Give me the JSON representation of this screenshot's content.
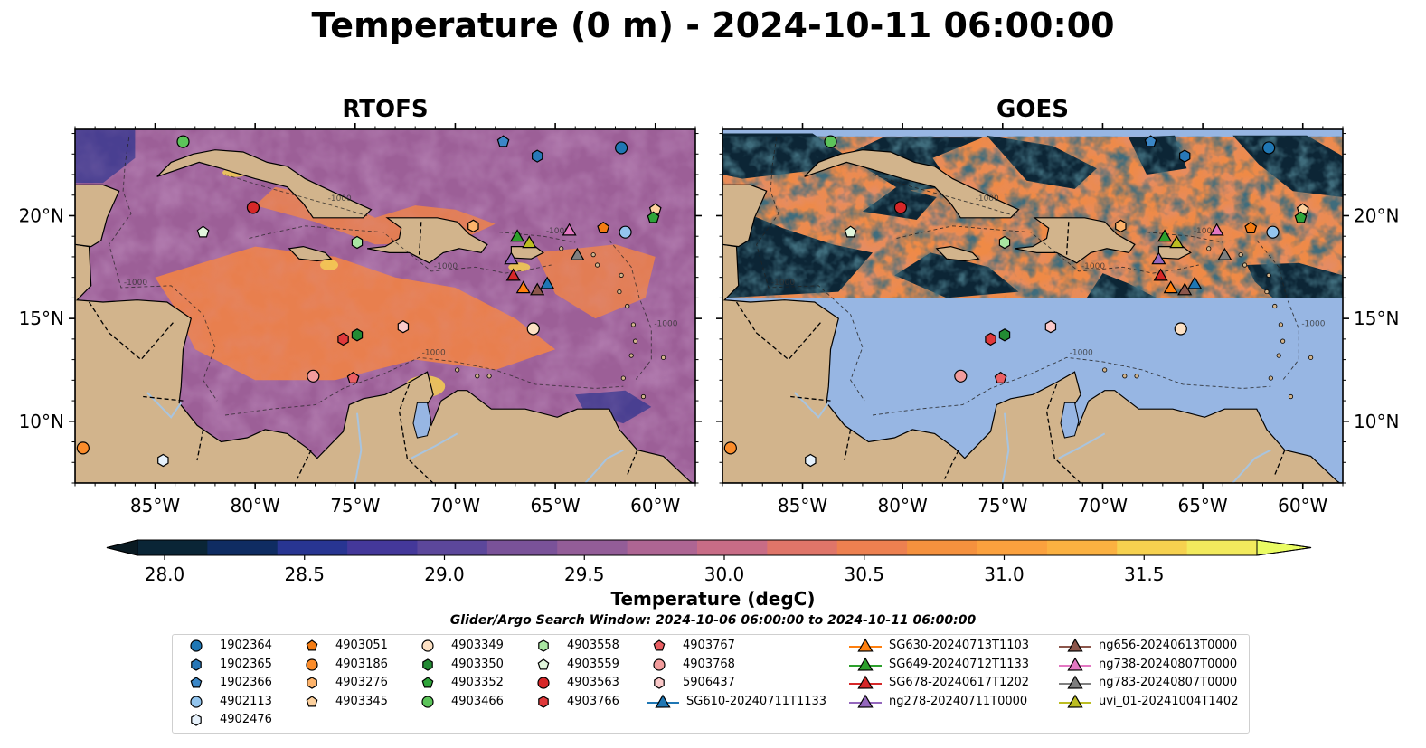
{
  "title": "Temperature (0 m) - 2024-10-11 06:00:00",
  "panels": [
    {
      "title": "RTOFS"
    },
    {
      "title": "GOES"
    }
  ],
  "lon_ticks": [
    "85°W",
    "80°W",
    "75°W",
    "70°W",
    "65°W",
    "60°W"
  ],
  "lat_ticks": [
    "20°N",
    "15°N",
    "10°N"
  ],
  "colorbar": {
    "label": "Temperature (degC)",
    "ticks": [
      "28.0",
      "28.5",
      "29.0",
      "29.5",
      "30.0",
      "30.5",
      "31.0",
      "31.5"
    ],
    "colors": [
      "#0a2536",
      "#0f2c62",
      "#283592",
      "#44389a",
      "#5c479b",
      "#7a5299",
      "#935d98",
      "#ae6593",
      "#c86c86",
      "#df7569",
      "#ed8050",
      "#f5913e",
      "#fba13e",
      "#fbb141",
      "#f6d14f",
      "#f2ea5d"
    ],
    "over_color": "#eafc63",
    "under_color": "#0a1a22"
  },
  "search_window": "Glider/Argo Search Window: 2024-10-06 06:00:00 to 2024-10-11 06:00:00",
  "contour_label": "-1000",
  "colors": {
    "land": "#d2b48c",
    "rtofs_ocean": "#9c5f97",
    "rtofs_warm": "#ef8248",
    "goes_nodata": "#97b6e3",
    "goes_dark": "#0c2535"
  },
  "legend": [
    {
      "label": "1902364",
      "marker": "circle",
      "color": "#1f77b4"
    },
    {
      "label": "1902365",
      "marker": "hexagon",
      "color": "#2878b8"
    },
    {
      "label": "1902366",
      "marker": "pentagon",
      "color": "#3b87c7"
    },
    {
      "label": "4902113",
      "marker": "circle",
      "color": "#93c5ee"
    },
    {
      "label": "4902476",
      "marker": "hexagon",
      "color": "#e6f1fb"
    },
    {
      "label": "4903051",
      "marker": "pentagon",
      "color": "#f47c13"
    },
    {
      "label": "4903186",
      "marker": "circle",
      "color": "#fb8c2a"
    },
    {
      "label": "4903276",
      "marker": "hexagon",
      "color": "#fdb36b"
    },
    {
      "label": "4903345",
      "marker": "pentagon",
      "color": "#fdd19e"
    },
    {
      "label": "4903349",
      "marker": "circle",
      "color": "#fde1c4"
    },
    {
      "label": "4903350",
      "marker": "hexagon",
      "color": "#238b34"
    },
    {
      "label": "4903352",
      "marker": "pentagon",
      "color": "#2fa53a"
    },
    {
      "label": "4903466",
      "marker": "circle",
      "color": "#5cc45a"
    },
    {
      "label": "4903558",
      "marker": "hexagon",
      "color": "#a9e6a2"
    },
    {
      "label": "4903559",
      "marker": "pentagon",
      "color": "#e1f6dc"
    },
    {
      "label": "4903563",
      "marker": "circle",
      "color": "#d62728"
    },
    {
      "label": "4903766",
      "marker": "hexagon",
      "color": "#e0393b"
    },
    {
      "label": "4903767",
      "marker": "pentagon",
      "color": "#ea5f63"
    },
    {
      "label": "4903768",
      "marker": "circle",
      "color": "#f29c9c"
    },
    {
      "label": "5906437",
      "marker": "hexagon",
      "color": "#fbc9c9"
    },
    {
      "label": "SG610-20240711T1133",
      "marker": "triangle",
      "color": "#1f77b4"
    },
    {
      "label": "SG630-20240713T1103",
      "marker": "triangle",
      "color": "#ff7f0e"
    },
    {
      "label": "SG649-20240712T1133",
      "marker": "triangle",
      "color": "#2ca02c"
    },
    {
      "label": "SG678-20240617T1202",
      "marker": "triangle",
      "color": "#d62728"
    },
    {
      "label": "ng278-20240711T0000",
      "marker": "triangle",
      "color": "#9467bd"
    },
    {
      "label": "ng656-20240613T0000",
      "marker": "triangle",
      "color": "#8c564b"
    },
    {
      "label": "ng738-20240807T0000",
      "marker": "triangle",
      "color": "#e377c2"
    },
    {
      "label": "ng783-20240807T0000",
      "marker": "triangle",
      "color": "#7f7f7f"
    },
    {
      "label": "uvi_01-20241004T1402",
      "marker": "triangle",
      "color": "#bcbd22"
    }
  ],
  "markers": [
    {
      "id": "1902364",
      "lon": -61.7,
      "lat": 23.3
    },
    {
      "id": "1902365",
      "lon": -65.9,
      "lat": 22.9
    },
    {
      "id": "1902366",
      "lon": -67.6,
      "lat": 23.6
    },
    {
      "id": "4902113",
      "lon": -61.5,
      "lat": 19.2
    },
    {
      "id": "4902476",
      "lon": -84.6,
      "lat": 8.1
    },
    {
      "id": "4903051",
      "lon": -62.6,
      "lat": 19.4
    },
    {
      "id": "4903186",
      "lon": -88.6,
      "lat": 8.7
    },
    {
      "id": "4903276",
      "lon": -69.1,
      "lat": 19.5
    },
    {
      "id": "4903345",
      "lon": -60.0,
      "lat": 20.3
    },
    {
      "id": "4903349",
      "lon": -66.1,
      "lat": 14.5
    },
    {
      "id": "4903350",
      "lon": -74.9,
      "lat": 14.2
    },
    {
      "id": "4903352",
      "lon": -60.1,
      "lat": 19.9
    },
    {
      "id": "4903466",
      "lon": -83.6,
      "lat": 23.6
    },
    {
      "id": "4903558",
      "lon": -74.9,
      "lat": 18.7
    },
    {
      "id": "4903559",
      "lon": -82.6,
      "lat": 19.2
    },
    {
      "id": "4903563",
      "lon": -80.1,
      "lat": 20.4
    },
    {
      "id": "4903766",
      "lon": -75.6,
      "lat": 14.0
    },
    {
      "id": "4903767",
      "lon": -75.1,
      "lat": 12.1
    },
    {
      "id": "4903768",
      "lon": -77.1,
      "lat": 12.2
    },
    {
      "id": "5906437",
      "lon": -72.6,
      "lat": 14.6
    },
    {
      "id": "SG610-20240711T1133",
      "lon": -65.4,
      "lat": 16.7
    },
    {
      "id": "SG630-20240713T1103",
      "lon": -66.6,
      "lat": 16.5
    },
    {
      "id": "SG649-20240712T1133",
      "lon": -66.9,
      "lat": 19.0
    },
    {
      "id": "SG678-20240617T1202",
      "lon": -67.1,
      "lat": 17.1
    },
    {
      "id": "ng278-20240711T0000",
      "lon": -67.2,
      "lat": 17.9
    },
    {
      "id": "ng656-20240613T0000",
      "lon": -65.9,
      "lat": 16.4
    },
    {
      "id": "ng738-20240807T0000",
      "lon": -64.3,
      "lat": 19.3
    },
    {
      "id": "ng783-20240807T0000",
      "lon": -63.9,
      "lat": 18.1
    },
    {
      "id": "uvi_01-20241004T1402",
      "lon": -66.3,
      "lat": 18.7
    }
  ]
}
